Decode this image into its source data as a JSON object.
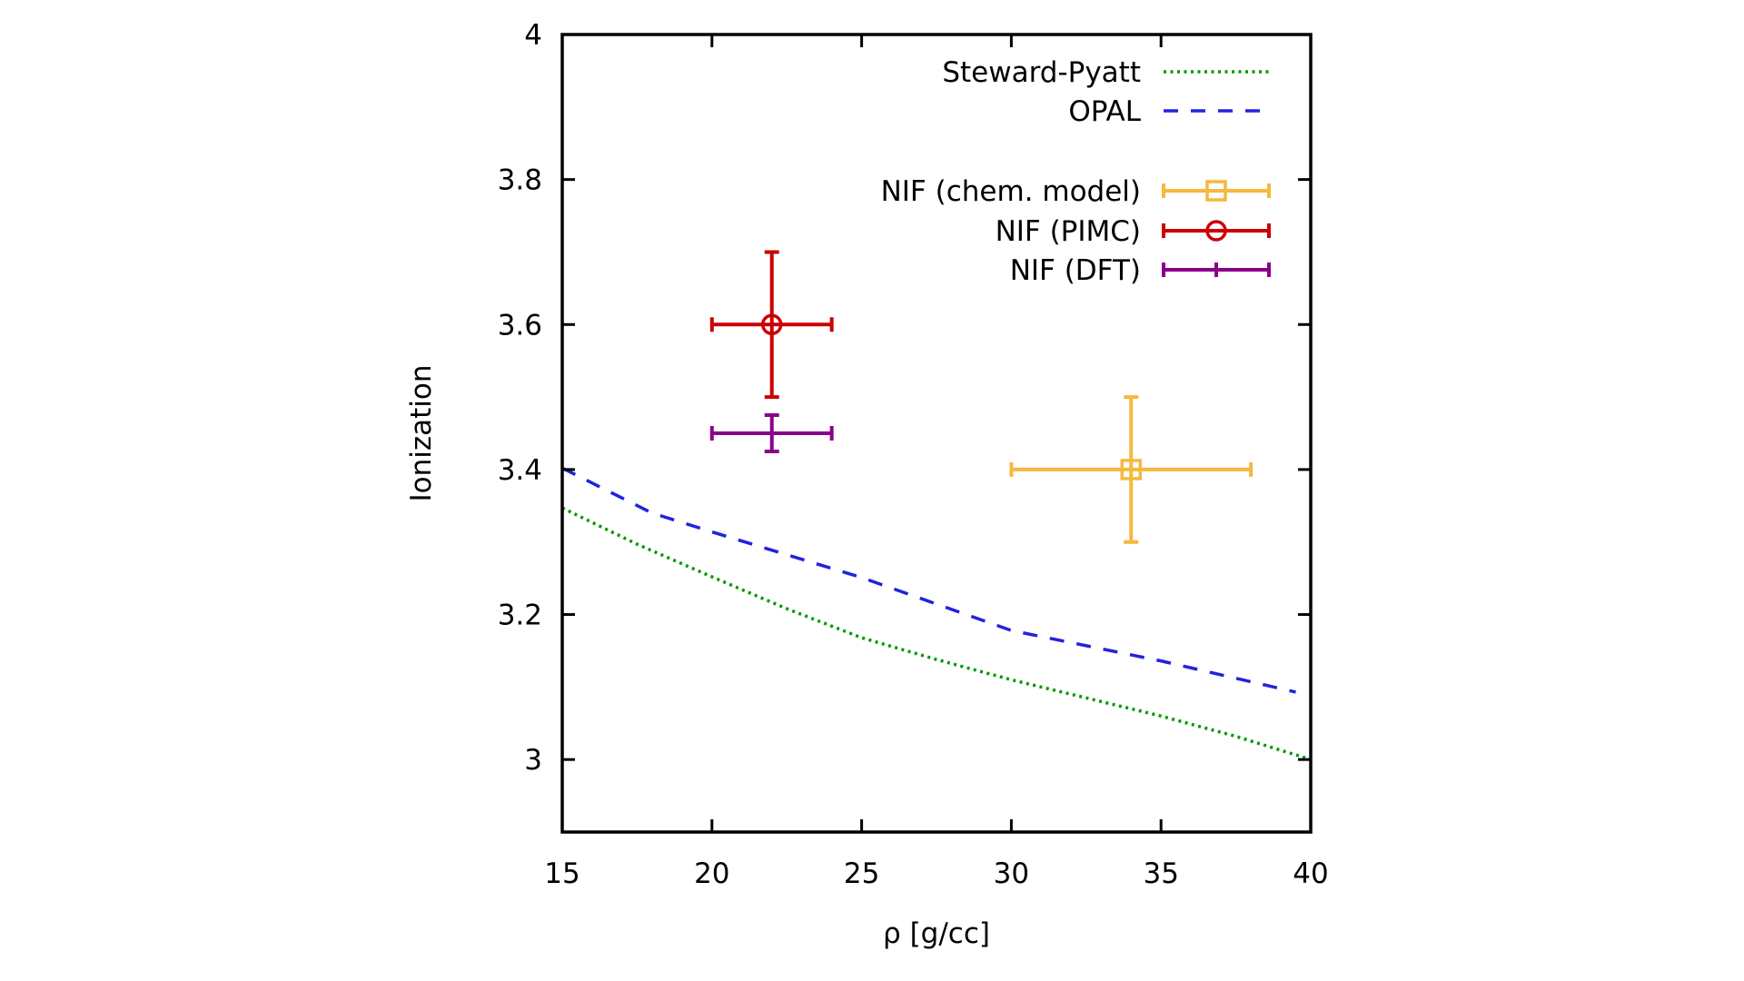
{
  "chart_data": {
    "type": "line",
    "title": "",
    "xlabel": "ρ [g/cc]",
    "ylabel": "Ionization",
    "xlim": [
      15,
      40
    ],
    "ylim": [
      2.9,
      4
    ],
    "xticks": [
      15,
      20,
      25,
      30,
      35,
      40
    ],
    "xtick_labels": [
      "15",
      "20",
      "25",
      "30",
      "35",
      "40"
    ],
    "yticks": [
      3,
      3.2,
      3.4,
      3.6,
      3.8,
      4
    ],
    "ytick_labels": [
      "3",
      "3.2",
      "3.4",
      "3.6",
      "3.8",
      "4"
    ],
    "grid": false,
    "legend_position": "top-right",
    "series": [
      {
        "name": "Steward-Pyatt",
        "style": "dotted",
        "color": "#009900",
        "x": [
          15,
          17.5,
          20,
          22.5,
          25,
          27.5,
          30,
          32.5,
          35,
          37.5,
          40
        ],
        "y": [
          3.347,
          3.297,
          3.252,
          3.208,
          3.168,
          3.138,
          3.11,
          3.085,
          3.06,
          3.032,
          3.0
        ]
      },
      {
        "name": "OPAL",
        "style": "dashed",
        "color": "#2222dd",
        "x": [
          15,
          18,
          20,
          25,
          30,
          35,
          39.5
        ],
        "y": [
          3.402,
          3.34,
          3.314,
          3.251,
          3.178,
          3.136,
          3.093
        ]
      }
    ],
    "points": [
      {
        "name": "NIF (chem. model)",
        "color": "#f4b93e",
        "marker": "square",
        "x": 34,
        "y": 3.4,
        "xerr": [
          30,
          38
        ],
        "yerr": [
          3.3,
          3.5
        ]
      },
      {
        "name": "NIF (PIMC)",
        "color": "#cc0000",
        "marker": "circle",
        "x": 22,
        "y": 3.6,
        "xerr": [
          20,
          24
        ],
        "yerr": [
          3.5,
          3.7
        ]
      },
      {
        "name": "NIF (DFT)",
        "color": "#8b008b",
        "marker": "plus",
        "x": 22,
        "y": 3.45,
        "xerr": [
          20,
          24
        ],
        "yerr": [
          3.425,
          3.475
        ]
      }
    ],
    "legend": [
      "Steward-Pyatt",
      "OPAL",
      "NIF (chem. model)",
      "NIF (PIMC)",
      "NIF (DFT)"
    ]
  }
}
